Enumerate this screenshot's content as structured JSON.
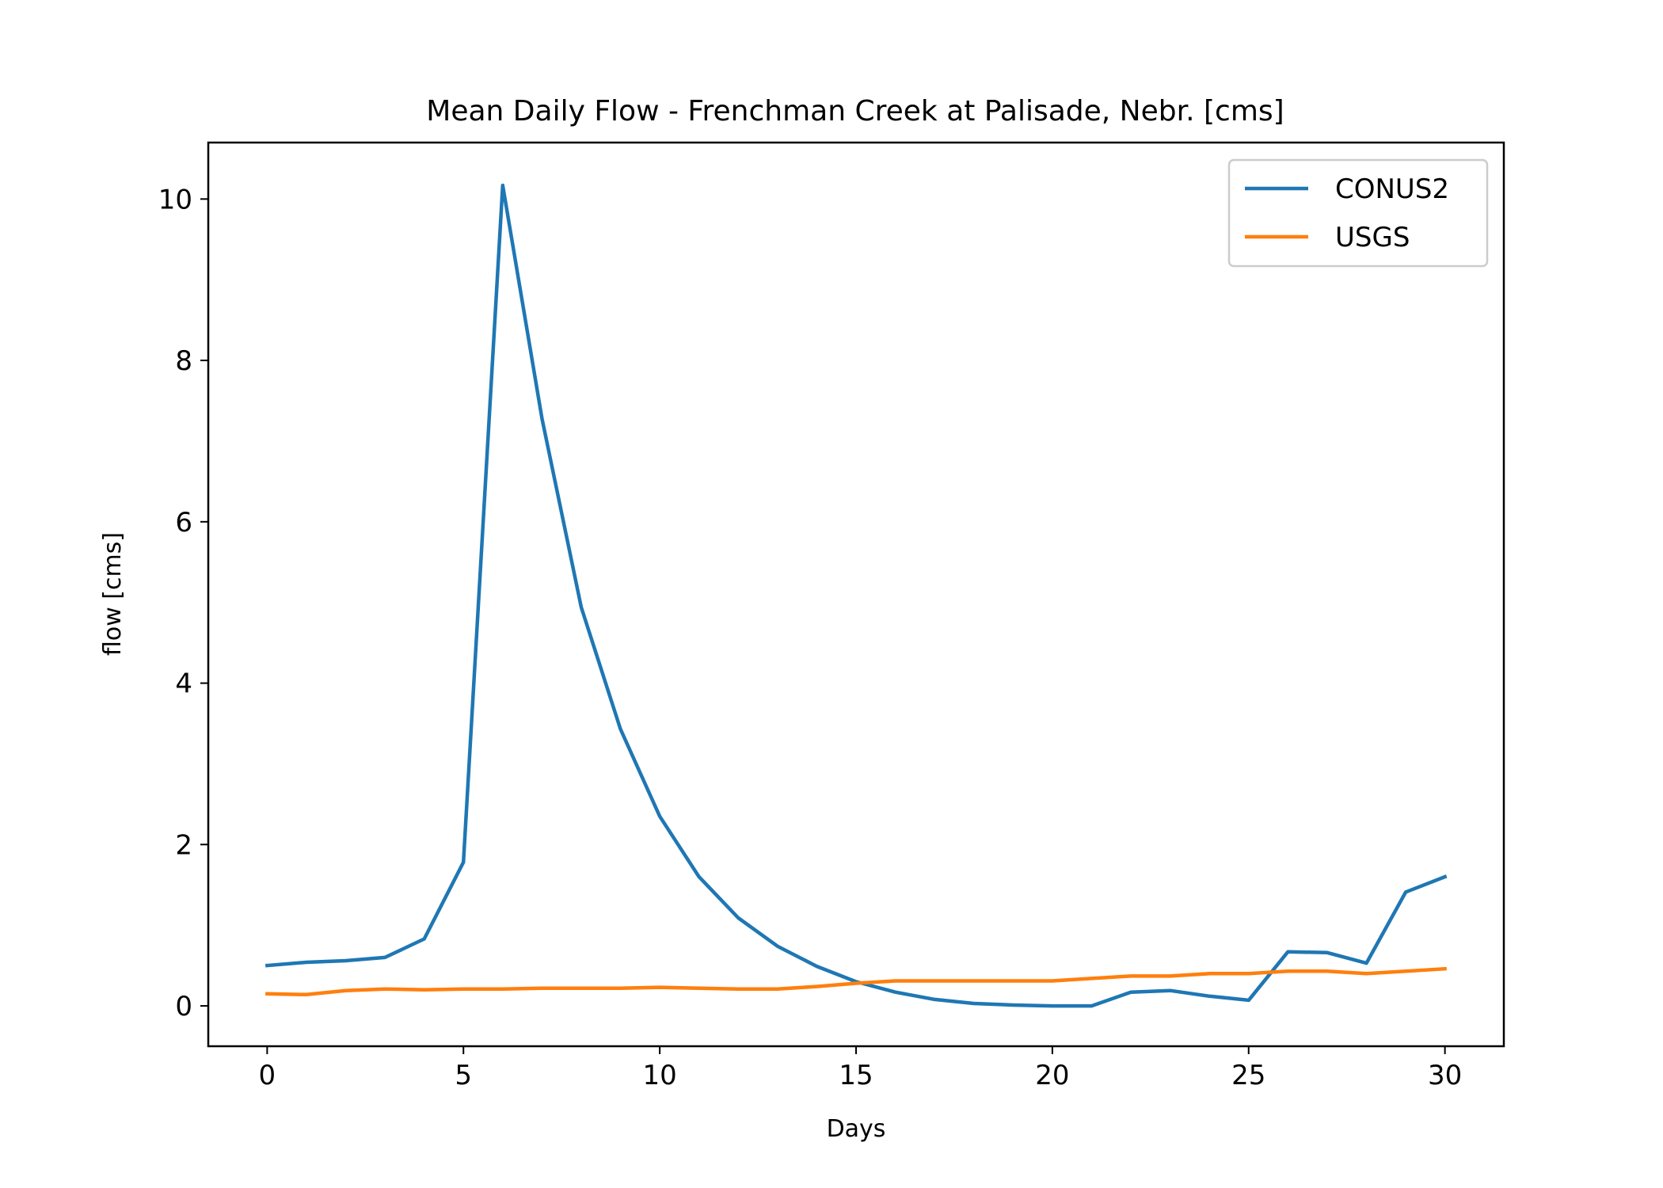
{
  "chart_data": {
    "type": "line",
    "title": "Mean Daily Flow - Frenchman Creek at Palisade, Nebr. [cms]",
    "xlabel": "Days",
    "ylabel": "flow [cms]",
    "xlim": [
      -1.5,
      31.5
    ],
    "ylim": [
      -0.5,
      10.7
    ],
    "xticks": [
      0,
      5,
      10,
      15,
      20,
      25,
      30
    ],
    "yticks": [
      0,
      2,
      4,
      6,
      8,
      10
    ],
    "grid": false,
    "legend_position": "top-right",
    "x": [
      0,
      1,
      2,
      3,
      4,
      5,
      6,
      7,
      8,
      9,
      10,
      11,
      12,
      13,
      14,
      15,
      16,
      17,
      18,
      19,
      20,
      21,
      22,
      23,
      24,
      25,
      26,
      27,
      28,
      29,
      30
    ],
    "series": [
      {
        "name": "CONUS2",
        "color": "#1f77b4",
        "values": [
          0.5,
          0.54,
          0.56,
          0.6,
          0.83,
          1.78,
          10.17,
          7.28,
          4.94,
          3.43,
          2.35,
          1.6,
          1.09,
          0.74,
          0.49,
          0.3,
          0.17,
          0.08,
          0.03,
          0.01,
          0.0,
          0.0,
          0.17,
          0.19,
          0.12,
          0.07,
          0.67,
          0.66,
          0.53,
          1.41,
          1.6
        ]
      },
      {
        "name": "USGS",
        "color": "#ff7f0e",
        "values": [
          0.15,
          0.14,
          0.19,
          0.21,
          0.2,
          0.21,
          0.21,
          0.22,
          0.22,
          0.22,
          0.23,
          0.22,
          0.21,
          0.21,
          0.24,
          0.28,
          0.31,
          0.31,
          0.31,
          0.31,
          0.31,
          0.34,
          0.37,
          0.37,
          0.4,
          0.4,
          0.43,
          0.43,
          0.4,
          0.43,
          0.46
        ]
      }
    ]
  }
}
